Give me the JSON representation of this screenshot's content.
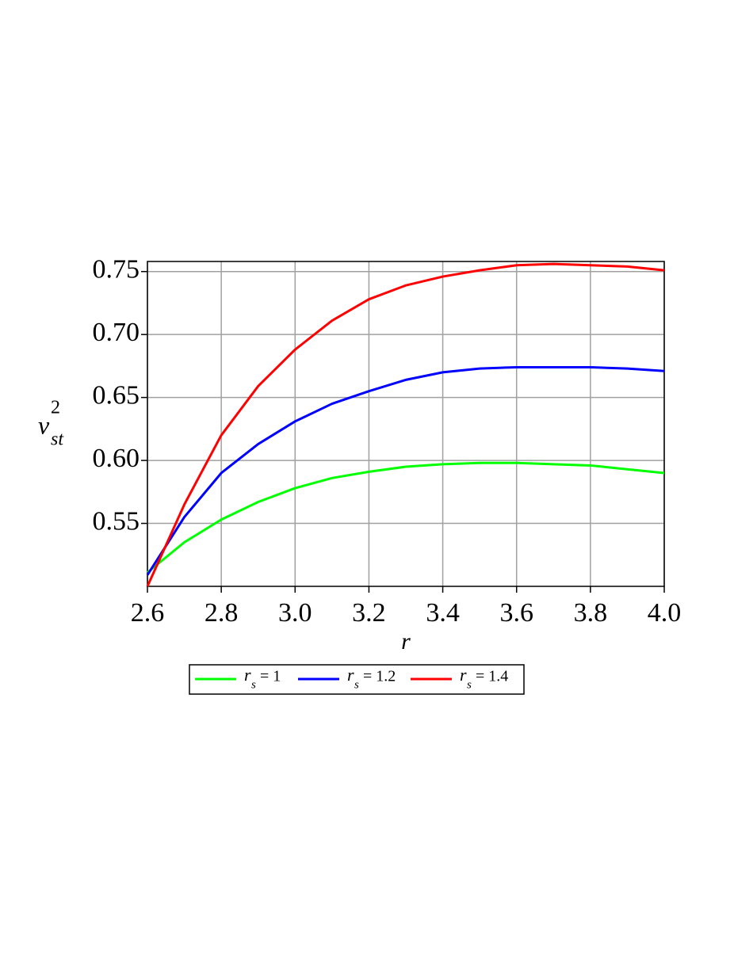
{
  "chart_data": {
    "type": "line",
    "xlabel": "r",
    "ylabel": {
      "base": "v",
      "sup": "2",
      "sub": "st"
    },
    "x": [
      2.6,
      2.7,
      2.8,
      2.9,
      3.0,
      3.1,
      3.2,
      3.3,
      3.4,
      3.5,
      3.6,
      3.7,
      3.8,
      3.9,
      4.0
    ],
    "series": [
      {
        "name": {
          "base": "r",
          "sub": "s",
          "rest": "= 1"
        },
        "color": "#00ff00",
        "values": [
          0.511,
          0.535,
          0.553,
          0.567,
          0.578,
          0.586,
          0.591,
          0.595,
          0.597,
          0.598,
          0.598,
          0.597,
          0.596,
          0.593,
          0.59
        ]
      },
      {
        "name": {
          "base": "r",
          "sub": "s",
          "rest": "= 1.2"
        },
        "color": "#0000ff",
        "values": [
          0.509,
          0.555,
          0.59,
          0.613,
          0.631,
          0.645,
          0.655,
          0.664,
          0.67,
          0.673,
          0.674,
          0.674,
          0.674,
          0.673,
          0.671
        ]
      },
      {
        "name": {
          "base": "r",
          "sub": "s",
          "rest": "= 1.4"
        },
        "color": "#ff0000",
        "values": [
          0.5,
          0.565,
          0.62,
          0.659,
          0.688,
          0.711,
          0.728,
          0.739,
          0.746,
          0.751,
          0.755,
          0.756,
          0.755,
          0.754,
          0.751
        ]
      }
    ],
    "xlim": [
      2.6,
      4.0
    ],
    "xticks": [
      2.6,
      2.8,
      {
        "value": 3.0,
        "label": "3.0"
      },
      3.2,
      3.4,
      3.6,
      3.8,
      {
        "value": 4.0,
        "label": "4.0"
      }
    ],
    "ylim": [
      0.5,
      0.758
    ],
    "yticks": [
      0.55,
      {
        "value": 0.6,
        "label": "0.60"
      },
      0.65,
      {
        "value": 0.7,
        "label": "0.70"
      },
      0.75
    ],
    "grid": true,
    "legend": "bottom"
  }
}
